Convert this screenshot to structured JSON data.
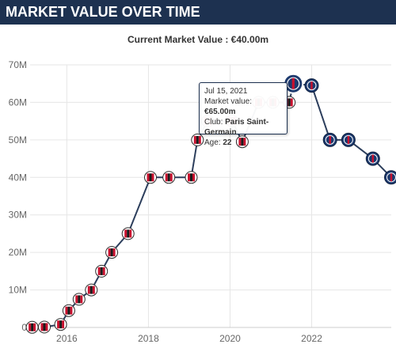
{
  "header": {
    "title": "MARKET VALUE OVER TIME"
  },
  "subtitle": "Current Market Value : €40.00m",
  "tooltip": {
    "date": "Jul 15, 2021",
    "value_label": "Market value:",
    "value": "€65.00m",
    "club_label": "Club:",
    "club": "Paris Saint-Germain",
    "age_label": "Age:",
    "age": "22"
  },
  "colors": {
    "header_bg": "#1d3150",
    "line": "#2c3e5c",
    "grid": "#e6e6e6",
    "milan_red": "#c8102e",
    "psg_blue": "#1d3a6e",
    "tooltip_border": "#1d3150"
  },
  "chart_data": {
    "type": "line",
    "title": "Current Market Value : €40.00m",
    "xlabel": "",
    "ylabel": "",
    "ylim": [
      0,
      70
    ],
    "xlim": [
      2015.1,
      2023.95
    ],
    "y_ticks": [
      "0",
      "10M",
      "20M",
      "30M",
      "40M",
      "50M",
      "60M",
      "70M"
    ],
    "y_tick_values": [
      0,
      10,
      20,
      30,
      40,
      50,
      60,
      70
    ],
    "x_ticks": [
      "2016",
      "2018",
      "2020",
      "2022"
    ],
    "x_tick_values": [
      2016,
      2018,
      2020,
      2022
    ],
    "grid": {
      "horizontal": true,
      "vertical": true
    },
    "series": [
      {
        "values_unit": "€m",
        "points": [
          {
            "x": 2015.15,
            "y": 0.05,
            "club": "milan"
          },
          {
            "x": 2015.45,
            "y": 0.1,
            "club": "milan"
          },
          {
            "x": 2015.85,
            "y": 0.8,
            "club": "milan"
          },
          {
            "x": 2016.05,
            "y": 4.5,
            "club": "milan"
          },
          {
            "x": 2016.3,
            "y": 7.5,
            "club": "milan"
          },
          {
            "x": 2016.6,
            "y": 10,
            "club": "milan"
          },
          {
            "x": 2016.85,
            "y": 15,
            "club": "milan"
          },
          {
            "x": 2017.1,
            "y": 20,
            "club": "milan"
          },
          {
            "x": 2017.5,
            "y": 25,
            "club": "milan"
          },
          {
            "x": 2018.05,
            "y": 40,
            "club": "milan"
          },
          {
            "x": 2018.5,
            "y": 40,
            "club": "milan"
          },
          {
            "x": 2019.05,
            "y": 40,
            "club": "milan"
          },
          {
            "x": 2019.2,
            "y": 50,
            "club": "milan"
          },
          {
            "x": 2019.45,
            "y": 55,
            "club": "milan"
          },
          {
            "x": 2020.05,
            "y": 55,
            "club": "milan"
          },
          {
            "x": 2020.3,
            "y": 49.5,
            "club": "milan"
          },
          {
            "x": 2020.7,
            "y": 60,
            "club": "milan"
          },
          {
            "x": 2021.05,
            "y": 60,
            "club": "milan"
          },
          {
            "x": 2021.45,
            "y": 60,
            "club": "milan"
          },
          {
            "x": 2021.55,
            "y": 65,
            "club": "psg"
          },
          {
            "x": 2022.0,
            "y": 64.5,
            "club": "psg"
          },
          {
            "x": 2022.45,
            "y": 50,
            "club": "psg"
          },
          {
            "x": 2022.9,
            "y": 50,
            "club": "psg"
          },
          {
            "x": 2023.5,
            "y": 45,
            "club": "psg"
          },
          {
            "x": 2023.95,
            "y": 40,
            "club": "psg"
          }
        ]
      }
    ]
  }
}
